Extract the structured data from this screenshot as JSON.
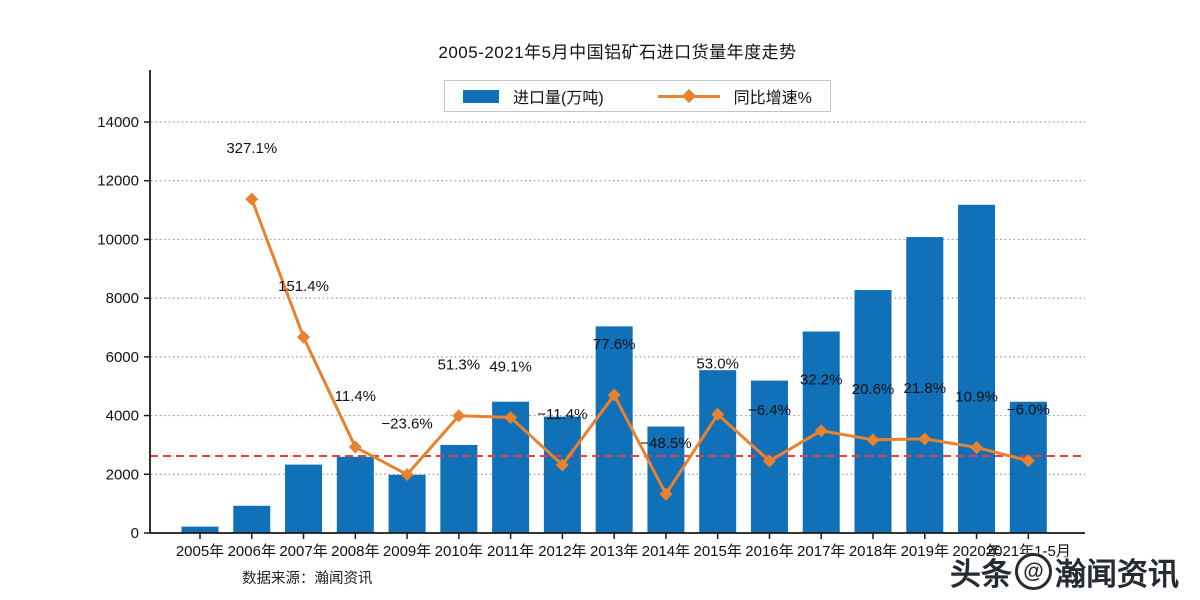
{
  "title": "2005-2021年5月中国铝矿石进口货量年度走势",
  "legend": {
    "bar_label": "进口量(万吨)",
    "line_label": "同比增速%"
  },
  "source": "数据来源：瀚闻资讯",
  "watermark": {
    "prefix": "头条",
    "at": "@",
    "name": "瀚闻资讯"
  },
  "colors": {
    "bar": "#1070b8",
    "line": "#e8822f",
    "zero_line": "#ec3d3d",
    "grid": "#9e9e9e",
    "axis": "#1a1a1a",
    "label_text": "#111111"
  },
  "chart_data": {
    "type": "bar",
    "combo": "bar+line",
    "title": "2005-2021年5月中国铝矿石进口货量年度走势",
    "categories": [
      "2005年",
      "2006年",
      "2007年",
      "2008年",
      "2009年",
      "2010年",
      "2011年",
      "2012年",
      "2013年",
      "2014年",
      "2015年",
      "2016年",
      "2017年",
      "2018年",
      "2019年",
      "2020年",
      "2021年1-5月"
    ],
    "series": [
      {
        "name": "进口量(万吨)",
        "type": "bar",
        "values": [
          217,
          927,
          2330,
          2596,
          1983,
          3000,
          4473,
          3963,
          7038,
          3625,
          5546,
          5191,
          6863,
          8277,
          10081,
          11180,
          4470
        ]
      },
      {
        "name": "同比增速%",
        "type": "line",
        "values": [
          null,
          327.1,
          151.4,
          11.4,
          -23.6,
          51.3,
          49.1,
          -11.4,
          77.6,
          -48.5,
          53.0,
          -6.4,
          32.2,
          20.6,
          21.8,
          10.9,
          -6.0
        ],
        "labels": [
          "",
          "327.1%",
          "151.4%",
          "11.4%",
          "−23.6%",
          "51.3%",
          "49.1%",
          "−11.4%",
          "77.6%",
          "−48.5%",
          "53.0%",
          "−6.4%",
          "32.2%",
          "20.6%",
          "21.8%",
          "10.9%",
          "−6.0%"
        ]
      }
    ],
    "y_axis": {
      "ticks": [
        0,
        2000,
        4000,
        6000,
        8000,
        10000,
        12000,
        14000
      ],
      "max": 14000
    },
    "secondary_axis": {
      "zero_reference_line": true,
      "zero_line_style": "red dashed"
    },
    "grid": "dotted horizontal",
    "legend_position": "top-center",
    "xlabel": "",
    "ylabel": ""
  }
}
